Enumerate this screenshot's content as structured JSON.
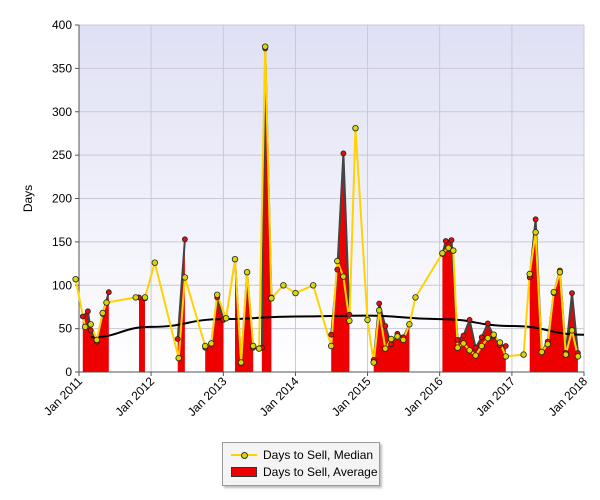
{
  "chart_data": {
    "type": "area",
    "xlabel": "",
    "ylabel": "Days",
    "ylim": [
      0,
      400
    ],
    "yticks": [
      0,
      50,
      100,
      150,
      200,
      250,
      300,
      350,
      400
    ],
    "xlim": [
      "2011-01-01",
      "2018-01-01"
    ],
    "xticks": [
      {
        "date": "2011-01-01",
        "label": "Jan 2011"
      },
      {
        "date": "2012-01-01",
        "label": "Jan 2012"
      },
      {
        "date": "2013-01-01",
        "label": "Jan 2013"
      },
      {
        "date": "2014-01-01",
        "label": "Jan 2014"
      },
      {
        "date": "2015-01-01",
        "label": "Jan 2015"
      },
      {
        "date": "2016-01-01",
        "label": "Jan 2016"
      },
      {
        "date": "2017-01-01",
        "label": "Jan 2017"
      },
      {
        "date": "2018-01-01",
        "label": "Jan 2018"
      }
    ],
    "grid": true,
    "legend_position": "bottom",
    "colors": {
      "median_line": "#ffd200",
      "median_marker": "#d8d800",
      "average_fill": "#ee0000",
      "average_edge": "#444444",
      "trend_line": "#000000",
      "plot_background": "#ececf8"
    },
    "series": [
      {
        "name": "Days to Sell, Median",
        "kind": "line",
        "points": [
          [
            "2010-12-15",
            107
          ],
          [
            "2011-02-01",
            52
          ],
          [
            "2011-03-01",
            55
          ],
          [
            "2011-04-01",
            37
          ],
          [
            "2011-05-01",
            68
          ],
          [
            "2011-05-20",
            80
          ],
          [
            "2011-10-15",
            86
          ],
          [
            "2011-12-01",
            86
          ],
          [
            "2012-01-20",
            126
          ],
          [
            "2012-05-20",
            16
          ],
          [
            "2012-06-20",
            109
          ],
          [
            "2012-10-01",
            30
          ],
          [
            "2012-11-01",
            33
          ],
          [
            "2012-12-01",
            89
          ],
          [
            "2013-01-15",
            62
          ],
          [
            "2013-03-01",
            130
          ],
          [
            "2013-04-01",
            11
          ],
          [
            "2013-05-01",
            115
          ],
          [
            "2013-06-01",
            30
          ],
          [
            "2013-07-01",
            27
          ],
          [
            "2013-08-01",
            375
          ],
          [
            "2013-09-01",
            85
          ],
          [
            "2013-11-01",
            100
          ],
          [
            "2014-01-01",
            91
          ],
          [
            "2014-04-01",
            100
          ],
          [
            "2014-07-01",
            30
          ],
          [
            "2014-08-01",
            128
          ],
          [
            "2014-09-01",
            110
          ],
          [
            "2014-10-01",
            59
          ],
          [
            "2014-11-01",
            281
          ],
          [
            "2015-01-01",
            60
          ],
          [
            "2015-02-01",
            11
          ],
          [
            "2015-03-01",
            71
          ],
          [
            "2015-04-01",
            27
          ],
          [
            "2015-05-01",
            38
          ],
          [
            "2015-06-01",
            41
          ],
          [
            "2015-07-01",
            37
          ],
          [
            "2015-08-01",
            55
          ],
          [
            "2015-09-01",
            86
          ],
          [
            "2016-01-15",
            137
          ],
          [
            "2016-02-15",
            143
          ],
          [
            "2016-03-10",
            140
          ],
          [
            "2016-04-01",
            28
          ],
          [
            "2016-05-01",
            33
          ],
          [
            "2016-06-01",
            25
          ],
          [
            "2016-07-01",
            19
          ],
          [
            "2016-08-01",
            30
          ],
          [
            "2016-09-01",
            39
          ],
          [
            "2016-10-01",
            43
          ],
          [
            "2016-11-01",
            34
          ],
          [
            "2016-12-01",
            18
          ],
          [
            "2017-03-01",
            20
          ],
          [
            "2017-04-01",
            113
          ],
          [
            "2017-05-01",
            161
          ],
          [
            "2017-06-01",
            23
          ],
          [
            "2017-07-01",
            32
          ],
          [
            "2017-08-01",
            92
          ],
          [
            "2017-09-01",
            115
          ],
          [
            "2017-10-01",
            20
          ],
          [
            "2017-11-01",
            48
          ],
          [
            "2017-12-01",
            18
          ]
        ]
      },
      {
        "name": "Days to Sell, Average",
        "kind": "area",
        "segments": [
          [
            [
              "2011-01-20",
              64
            ],
            [
              "2011-02-15",
              70
            ],
            [
              "2011-03-01",
              48
            ],
            [
              "2011-04-01",
              35
            ],
            [
              "2011-05-01",
              67
            ],
            [
              "2011-06-01",
              92
            ]
          ],
          [
            [
              "2011-11-01",
              86
            ],
            [
              "2011-12-01",
              85
            ]
          ],
          [
            [
              "2012-05-15",
              38
            ],
            [
              "2012-06-20",
              153
            ]
          ],
          [
            [
              "2012-10-01",
              28
            ],
            [
              "2012-11-01",
              33
            ],
            [
              "2012-12-01",
              86
            ],
            [
              "2013-01-01",
              60
            ]
          ],
          [
            [
              "2013-03-01",
              130
            ],
            [
              "2013-04-01",
              10
            ],
            [
              "2013-05-01",
              115
            ],
            [
              "2013-06-01",
              28
            ]
          ],
          [
            [
              "2013-07-15",
              28
            ],
            [
              "2013-08-01",
              373
            ],
            [
              "2013-09-01",
              86
            ]
          ],
          [
            [
              "2014-07-01",
              43
            ],
            [
              "2014-08-01",
              118
            ],
            [
              "2014-09-01",
              252
            ],
            [
              "2014-10-01",
              66
            ]
          ],
          [
            [
              "2015-02-01",
              14
            ],
            [
              "2015-03-01",
              79
            ],
            [
              "2015-04-01",
              53
            ],
            [
              "2015-05-01",
              32
            ],
            [
              "2015-06-01",
              44
            ],
            [
              "2015-07-01",
              40
            ],
            [
              "2015-08-01",
              55
            ]
          ],
          [
            [
              "2016-01-15",
              136
            ],
            [
              "2016-02-01",
              151
            ],
            [
              "2016-03-01",
              152
            ],
            [
              "2016-04-01",
              37
            ],
            [
              "2016-05-01",
              42
            ],
            [
              "2016-06-01",
              60
            ],
            [
              "2016-07-01",
              28
            ],
            [
              "2016-08-01",
              40
            ],
            [
              "2016-09-01",
              56
            ],
            [
              "2016-10-01",
              41
            ],
            [
              "2016-11-01",
              31
            ],
            [
              "2016-12-01",
              30
            ]
          ],
          [
            [
              "2017-04-01",
              109
            ],
            [
              "2017-05-01",
              176
            ],
            [
              "2017-06-01",
              23
            ],
            [
              "2017-07-01",
              35
            ],
            [
              "2017-08-01",
              91
            ],
            [
              "2017-09-01",
              117
            ],
            [
              "2017-10-01",
              22
            ],
            [
              "2017-11-01",
              91
            ],
            [
              "2017-12-01",
              22
            ]
          ]
        ]
      },
      {
        "name": "",
        "kind": "trend",
        "points": [
          [
            "2011-03-01",
            40
          ],
          [
            "2012-01-01",
            52
          ],
          [
            "2013-01-01",
            61
          ],
          [
            "2014-01-01",
            64
          ],
          [
            "2015-01-01",
            65
          ],
          [
            "2016-01-01",
            61
          ],
          [
            "2017-01-01",
            53
          ],
          [
            "2018-01-01",
            43
          ]
        ]
      }
    ]
  },
  "legend": {
    "items": [
      {
        "label": "Days to Sell, Median"
      },
      {
        "label": "Days to Sell, Average"
      }
    ]
  }
}
